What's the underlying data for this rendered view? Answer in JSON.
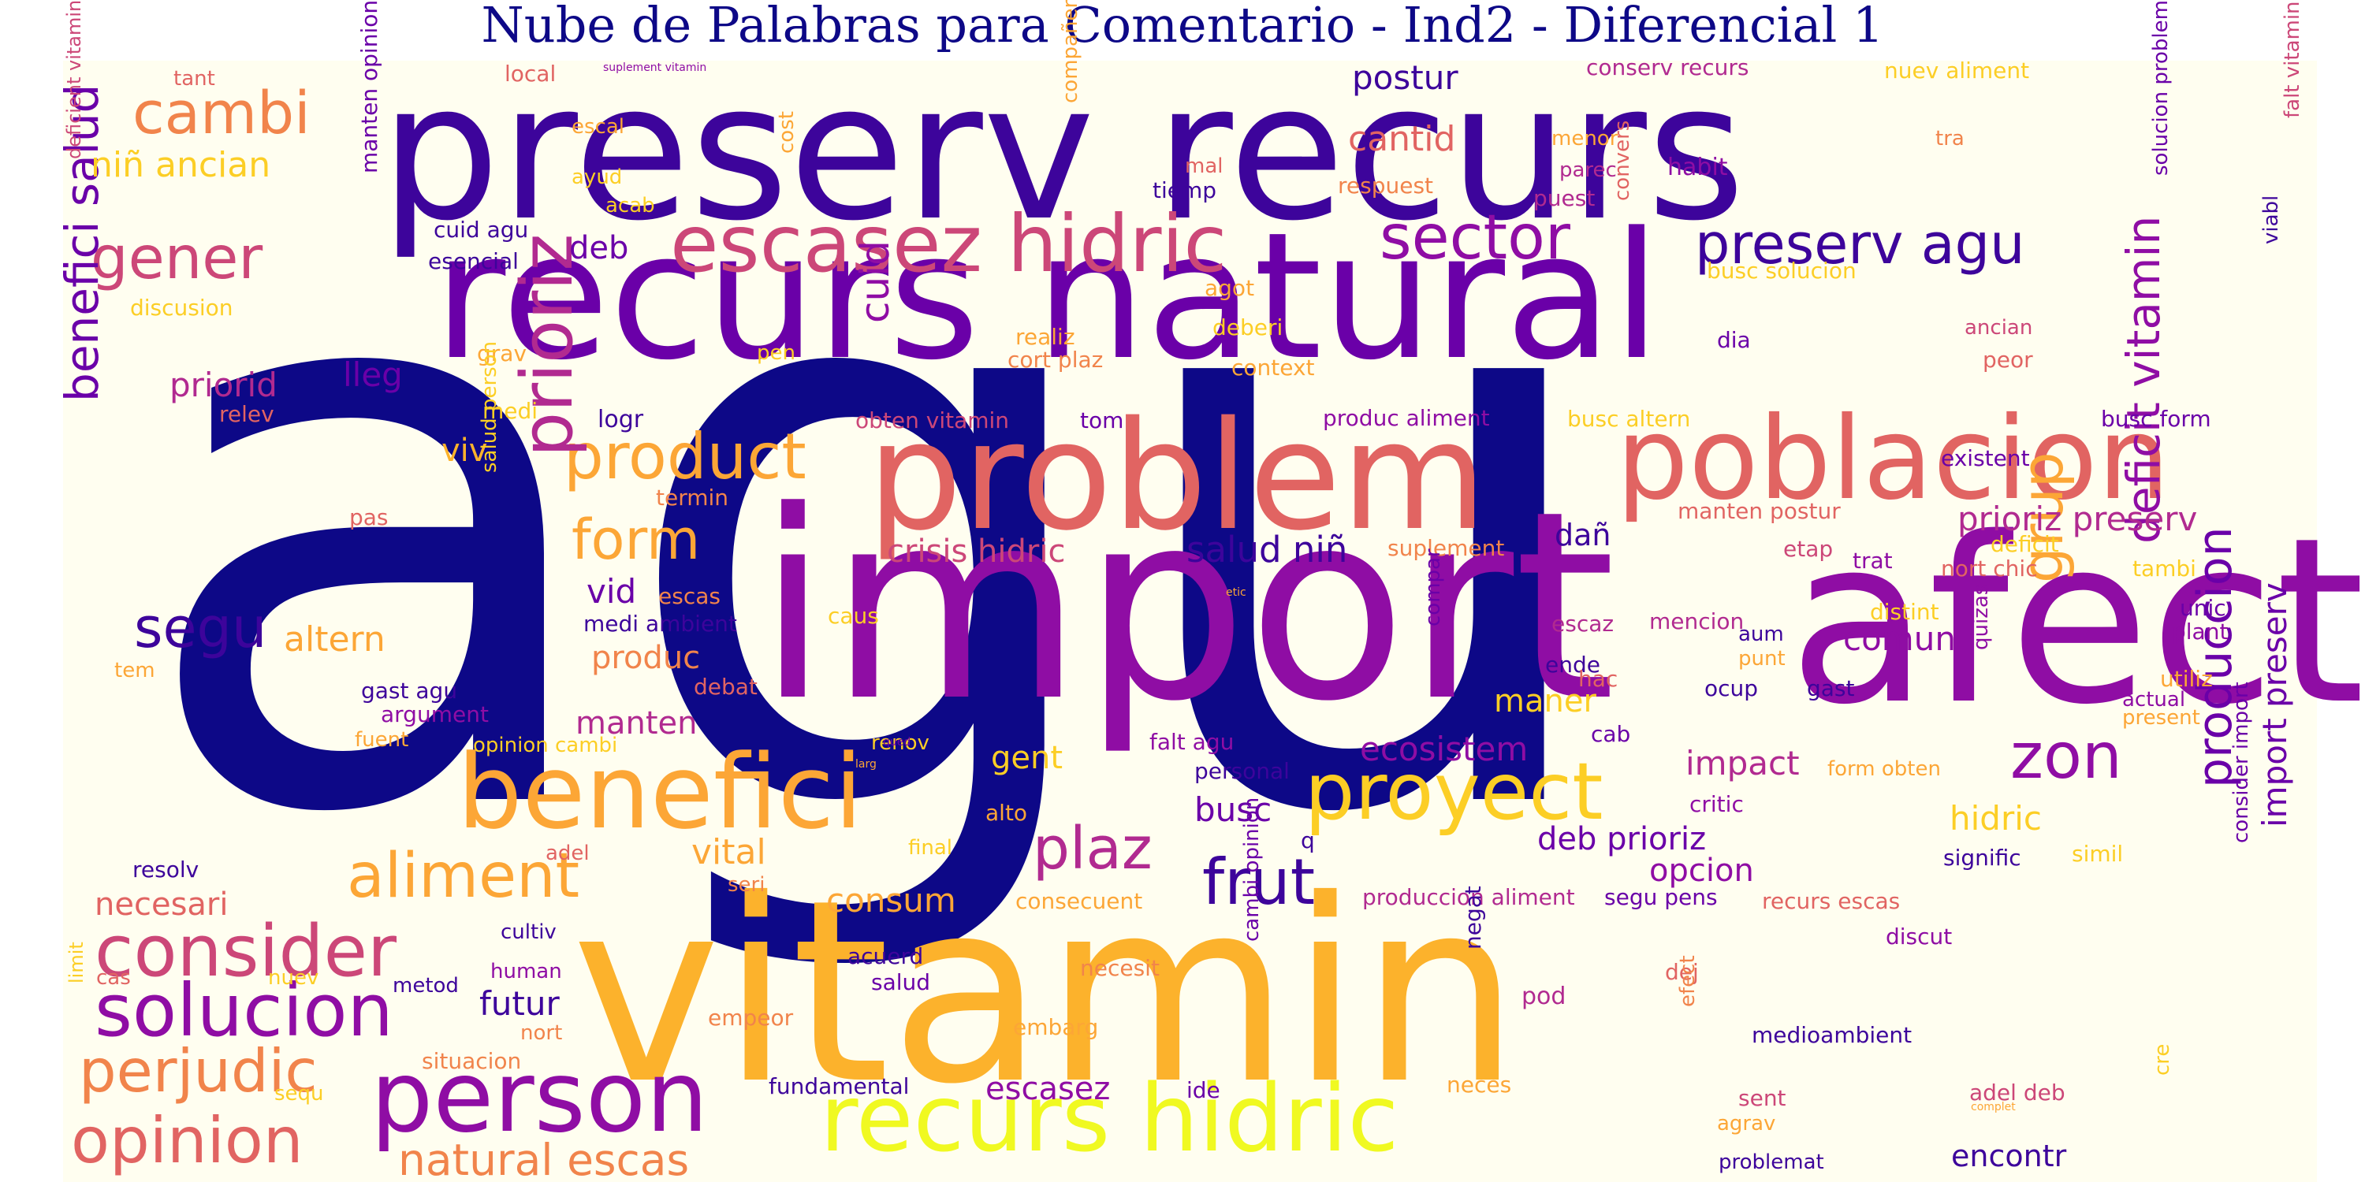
{
  "title": "Nube de Palabras para Comentario - Ind2 - Diferencial 1",
  "palette": {
    "background": "#fffef0",
    "title_color": "#0d0887",
    "colors": [
      "#0d0887",
      "#3d049b",
      "#6a00a8",
      "#8f0da4",
      "#b12a90",
      "#cc4778",
      "#e16462",
      "#f1844b",
      "#fca636",
      "#fcce25",
      "#f0f921"
    ]
  },
  "words": [
    {
      "text": "agu",
      "color": "#0d0887",
      "vertical": true
    },
    {
      "text": "preserv recurs",
      "color": "#3d049b",
      "vertical": false
    },
    {
      "text": "recurs natural",
      "color": "#6a00a8",
      "vertical": false
    },
    {
      "text": "import",
      "color": "#8f0da4",
      "vertical": false
    },
    {
      "text": "vitamin",
      "color": "#fcb22c",
      "vertical": false
    },
    {
      "text": "afect",
      "color": "#8f0da4",
      "vertical": true
    },
    {
      "text": "problem",
      "color": "#e16462",
      "vertical": false
    },
    {
      "text": "poblacion",
      "color": "#e16462",
      "vertical": false
    },
    {
      "text": "recurs hidric",
      "color": "#f0f921",
      "vertical": false
    },
    {
      "text": "benefici",
      "color": "#fca636",
      "vertical": false
    },
    {
      "text": "person",
      "color": "#8f0da4",
      "vertical": false
    },
    {
      "text": "escasez hidric",
      "color": "#cc4778",
      "vertical": false
    },
    {
      "text": "proyect",
      "color": "#fcce25",
      "vertical": false
    },
    {
      "text": "sector",
      "color": "#8f0da4",
      "vertical": false
    },
    {
      "text": "preserv agu",
      "color": "#3d049b",
      "vertical": false
    },
    {
      "text": "gener",
      "color": "#cc4778",
      "vertical": false
    },
    {
      "text": "cambi",
      "color": "#f1844b",
      "vertical": false
    },
    {
      "text": "aliment",
      "color": "#fca636",
      "vertical": false
    },
    {
      "text": "consider",
      "color": "#cc4778",
      "vertical": false
    },
    {
      "text": "solucion",
      "color": "#8f0da4",
      "vertical": false
    },
    {
      "text": "perjudic",
      "color": "#f1844b",
      "vertical": false
    },
    {
      "text": "opinion",
      "color": "#e16462",
      "vertical": false
    },
    {
      "text": "natural escas",
      "color": "#f1844b",
      "vertical": false
    },
    {
      "text": "product",
      "color": "#fca636",
      "vertical": false
    },
    {
      "text": "form",
      "color": "#fca636",
      "vertical": false
    },
    {
      "text": "prioriz",
      "color": "#b12a90",
      "vertical": true
    },
    {
      "text": "benefici salud",
      "color": "#6a00a8",
      "vertical": true
    },
    {
      "text": "segu",
      "color": "#3d049b",
      "vertical": false
    },
    {
      "text": "plaz",
      "color": "#b12a90",
      "vertical": false
    },
    {
      "text": "frut",
      "color": "#3d049b",
      "vertical": false
    },
    {
      "text": "grup",
      "color": "#fca636",
      "vertical": true
    },
    {
      "text": "zon",
      "color": "#8f0da4",
      "vertical": false
    },
    {
      "text": "deficit vitamin",
      "color": "#8f0da4",
      "vertical": true
    },
    {
      "text": "produccion",
      "color": "#6a00a8",
      "vertical": true
    },
    {
      "text": "import preserv",
      "color": "#6a00a8",
      "vertical": true
    },
    {
      "text": "niñ ancian",
      "color": "#fcce25",
      "vertical": false
    },
    {
      "text": "cantid",
      "color": "#e16462",
      "vertical": false
    },
    {
      "text": "postur",
      "color": "#3d049b",
      "vertical": false
    },
    {
      "text": "cuid",
      "color": "#8f0da4",
      "vertical": true
    },
    {
      "text": "deb",
      "color": "#6a00a8",
      "vertical": false
    },
    {
      "text": "lleg",
      "color": "#6a00a8",
      "vertical": false
    },
    {
      "text": "priorid",
      "color": "#b12a90",
      "vertical": false
    },
    {
      "text": "crisis hidric",
      "color": "#cc4778",
      "vertical": false
    },
    {
      "text": "salud niñ",
      "color": "#3d049b",
      "vertical": false
    },
    {
      "text": "vid",
      "color": "#6a00a8",
      "vertical": false
    },
    {
      "text": "viv",
      "color": "#fcb22c",
      "vertical": false
    },
    {
      "text": "altern",
      "color": "#fca636",
      "vertical": false
    },
    {
      "text": "manten",
      "color": "#b12a90",
      "vertical": false
    },
    {
      "text": "produc",
      "color": "#f1844b",
      "vertical": false
    },
    {
      "text": "ecosistem",
      "color": "#8f0da4",
      "vertical": false
    },
    {
      "text": "maner",
      "color": "#fcce25",
      "vertical": false
    },
    {
      "text": "comun",
      "color": "#8f0da4",
      "vertical": false
    },
    {
      "text": "prioriz preserv",
      "color": "#b12a90",
      "vertical": false
    },
    {
      "text": "impact",
      "color": "#b12a90",
      "vertical": false
    },
    {
      "text": "hidric",
      "color": "#fcce25",
      "vertical": false
    },
    {
      "text": "gent",
      "color": "#fcce25",
      "vertical": false
    },
    {
      "text": "vital",
      "color": "#fca636",
      "vertical": false
    },
    {
      "text": "busc",
      "color": "#6a00a8",
      "vertical": false
    },
    {
      "text": "deb prioriz",
      "color": "#6a00a8",
      "vertical": false
    },
    {
      "text": "opcion",
      "color": "#8f0da4",
      "vertical": false
    },
    {
      "text": "consum",
      "color": "#fca636",
      "vertical": false
    },
    {
      "text": "futur",
      "color": "#3d049b",
      "vertical": false
    },
    {
      "text": "escasez",
      "color": "#8f0da4",
      "vertical": false
    },
    {
      "text": "encontr",
      "color": "#3d049b",
      "vertical": false
    },
    {
      "text": "necesari",
      "color": "#e16462",
      "vertical": false
    },
    {
      "text": "dañ",
      "color": "#3d049b",
      "vertical": false
    },
    {
      "text": "cuid agu",
      "color": "#3d049b",
      "vertical": false
    },
    {
      "text": "esencial",
      "color": "#3d049b",
      "vertical": false
    },
    {
      "text": "tiemp",
      "color": "#3d049b",
      "vertical": false
    },
    {
      "text": "habit",
      "color": "#8f0da4",
      "vertical": false
    },
    {
      "text": "parec",
      "color": "#b12a90",
      "vertical": false
    },
    {
      "text": "puest",
      "color": "#b12a90",
      "vertical": false
    },
    {
      "text": "conserv recurs",
      "color": "#b12a90",
      "vertical": false
    },
    {
      "text": "nuev aliment",
      "color": "#fcce25",
      "vertical": false
    },
    {
      "text": "menor",
      "color": "#fca636",
      "vertical": false
    },
    {
      "text": "tra",
      "color": "#f1844b",
      "vertical": false
    },
    {
      "text": "respuest",
      "color": "#f1844b",
      "vertical": false
    },
    {
      "text": "mal",
      "color": "#e16462",
      "vertical": false
    },
    {
      "text": "busc solucion",
      "color": "#fcce25",
      "vertical": false
    },
    {
      "text": "agot",
      "color": "#fca636",
      "vertical": false
    },
    {
      "text": "deberi",
      "color": "#fcce25",
      "vertical": false
    },
    {
      "text": "realiz",
      "color": "#fca636",
      "vertical": false
    },
    {
      "text": "cort plaz",
      "color": "#f1844b",
      "vertical": false
    },
    {
      "text": "context",
      "color": "#fca636",
      "vertical": false
    },
    {
      "text": "dia",
      "color": "#6a00a8",
      "vertical": false
    },
    {
      "text": "ancian",
      "color": "#cc4778",
      "vertical": false
    },
    {
      "text": "peor",
      "color": "#e16462",
      "vertical": false
    },
    {
      "text": "produc aliment",
      "color": "#8f0da4",
      "vertical": false
    },
    {
      "text": "busc altern",
      "color": "#fcce25",
      "vertical": false
    },
    {
      "text": "existent",
      "color": "#6a00a8",
      "vertical": false
    },
    {
      "text": "busc form",
      "color": "#6a00a8",
      "vertical": false
    },
    {
      "text": "obten vitamin",
      "color": "#cc4778",
      "vertical": false
    },
    {
      "text": "tom",
      "color": "#6a00a8",
      "vertical": false
    },
    {
      "text": "logr",
      "color": "#3d049b",
      "vertical": false
    },
    {
      "text": "medi",
      "color": "#fcce25",
      "vertical": false
    },
    {
      "text": "relev",
      "color": "#e16462",
      "vertical": false
    },
    {
      "text": "grav",
      "color": "#fca636",
      "vertical": false
    },
    {
      "text": "pen",
      "color": "#fcce25",
      "vertical": false
    },
    {
      "text": "termin",
      "color": "#f1844b",
      "vertical": false
    },
    {
      "text": "pas",
      "color": "#e16462",
      "vertical": false
    },
    {
      "text": "manten postur",
      "color": "#e16462",
      "vertical": false
    },
    {
      "text": "etap",
      "color": "#cc4778",
      "vertical": false
    },
    {
      "text": "trat",
      "color": "#8f0da4",
      "vertical": false
    },
    {
      "text": "deficit",
      "color": "#fcce25",
      "vertical": false
    },
    {
      "text": "nort chic",
      "color": "#e16462",
      "vertical": false
    },
    {
      "text": "tambi",
      "color": "#fcce25",
      "vertical": false
    },
    {
      "text": "suplement",
      "color": "#f1844b",
      "vertical": false
    },
    {
      "text": "distint",
      "color": "#fcce25",
      "vertical": false
    },
    {
      "text": "mencion",
      "color": "#b12a90",
      "vertical": false
    },
    {
      "text": "aum",
      "color": "#3d049b",
      "vertical": false
    },
    {
      "text": "punt",
      "color": "#fca636",
      "vertical": false
    },
    {
      "text": "escaz",
      "color": "#b12a90",
      "vertical": false
    },
    {
      "text": "ende",
      "color": "#3d049b",
      "vertical": false
    },
    {
      "text": "hac",
      "color": "#e16462",
      "vertical": false
    },
    {
      "text": "ocup",
      "color": "#3d049b",
      "vertical": false
    },
    {
      "text": "gast",
      "color": "#3d049b",
      "vertical": false
    },
    {
      "text": "unic",
      "color": "#6a00a8",
      "vertical": false
    },
    {
      "text": "plant",
      "color": "#8f0da4",
      "vertical": false
    },
    {
      "text": "utiliz",
      "color": "#fca636",
      "vertical": false
    },
    {
      "text": "actual",
      "color": "#8f0da4",
      "vertical": false
    },
    {
      "text": "present",
      "color": "#fca636",
      "vertical": false
    },
    {
      "text": "medi ambient",
      "color": "#3d049b",
      "vertical": false
    },
    {
      "text": "escas",
      "color": "#f1844b",
      "vertical": false
    },
    {
      "text": "caus",
      "color": "#fcce25",
      "vertical": false
    },
    {
      "text": "gast agu",
      "color": "#3d049b",
      "vertical": false
    },
    {
      "text": "debat",
      "color": "#e16462",
      "vertical": false
    },
    {
      "text": "argument",
      "color": "#8f0da4",
      "vertical": false
    },
    {
      "text": "fuent",
      "color": "#fca636",
      "vertical": false
    },
    {
      "text": "opinion cambi",
      "color": "#fcce25",
      "vertical": false
    },
    {
      "text": "renov",
      "color": "#fcce25",
      "vertical": false
    },
    {
      "text": "falt agu",
      "color": "#8f0da4",
      "vertical": false
    },
    {
      "text": "cab",
      "color": "#6a00a8",
      "vertical": false
    },
    {
      "text": "personal",
      "color": "#3d049b",
      "vertical": false
    },
    {
      "text": "critic",
      "color": "#8f0da4",
      "vertical": false
    },
    {
      "text": "form obten",
      "color": "#fca636",
      "vertical": false
    },
    {
      "text": "alto",
      "color": "#fca636",
      "vertical": false
    },
    {
      "text": "final",
      "color": "#fcce25",
      "vertical": false
    },
    {
      "text": "adel",
      "color": "#e16462",
      "vertical": false
    },
    {
      "text": "seri",
      "color": "#f1844b",
      "vertical": false
    },
    {
      "text": "signific",
      "color": "#3d049b",
      "vertical": false
    },
    {
      "text": "simil",
      "color": "#fcce25",
      "vertical": false
    },
    {
      "text": "resolv",
      "color": "#3d049b",
      "vertical": false
    },
    {
      "text": "consecuent",
      "color": "#fca636",
      "vertical": false
    },
    {
      "text": "produccion aliment",
      "color": "#b12a90",
      "vertical": false
    },
    {
      "text": "segu pens",
      "color": "#6a00a8",
      "vertical": false
    },
    {
      "text": "recurs escas",
      "color": "#e16462",
      "vertical": false
    },
    {
      "text": "discut",
      "color": "#8f0da4",
      "vertical": false
    },
    {
      "text": "cultiv",
      "color": "#3d049b",
      "vertical": false
    },
    {
      "text": "human",
      "color": "#8f0da4",
      "vertical": false
    },
    {
      "text": "cas",
      "color": "#e16462",
      "vertical": false
    },
    {
      "text": "metod",
      "color": "#3d049b",
      "vertical": false
    },
    {
      "text": "nuev",
      "color": "#fcce25",
      "vertical": false
    },
    {
      "text": "nort",
      "color": "#f1844b",
      "vertical": false
    },
    {
      "text": "acuerd",
      "color": "#3d049b",
      "vertical": false
    },
    {
      "text": "salud",
      "color": "#6a00a8",
      "vertical": false
    },
    {
      "text": "necesit",
      "color": "#f1844b",
      "vertical": false
    },
    {
      "text": "empeor",
      "color": "#f1844b",
      "vertical": false
    },
    {
      "text": "embarg",
      "color": "#fca636",
      "vertical": false
    },
    {
      "text": "pod",
      "color": "#b12a90",
      "vertical": false
    },
    {
      "text": "dej",
      "color": "#e16462",
      "vertical": false
    },
    {
      "text": "medioambient",
      "color": "#3d049b",
      "vertical": false
    },
    {
      "text": "situacion",
      "color": "#f1844b",
      "vertical": false
    },
    {
      "text": "fundamental",
      "color": "#3d049b",
      "vertical": false
    },
    {
      "text": "ide",
      "color": "#6a00a8",
      "vertical": false
    },
    {
      "text": "neces",
      "color": "#fca636",
      "vertical": false
    },
    {
      "text": "sent",
      "color": "#cc4778",
      "vertical": false
    },
    {
      "text": "agrav",
      "color": "#fca636",
      "vertical": false
    },
    {
      "text": "adel deb",
      "color": "#cc4778",
      "vertical": false
    },
    {
      "text": "problemat",
      "color": "#3d049b",
      "vertical": false
    },
    {
      "text": "sequ",
      "color": "#fcce25",
      "vertical": false
    },
    {
      "text": "complet",
      "color": "#fca636",
      "vertical": false
    },
    {
      "text": "tant",
      "color": "#e16462",
      "vertical": false
    },
    {
      "text": "local",
      "color": "#e16462",
      "vertical": false
    },
    {
      "text": "suplement vitamin",
      "color": "#8f0da4",
      "vertical": false
    },
    {
      "text": "escal",
      "color": "#fca636",
      "vertical": false
    },
    {
      "text": "ayud",
      "color": "#fcce25",
      "vertical": false
    },
    {
      "text": "acab",
      "color": "#fcce25",
      "vertical": false
    },
    {
      "text": "discusion",
      "color": "#fcce25",
      "vertical": false
    },
    {
      "text": "tem",
      "color": "#fca636",
      "vertical": false
    },
    {
      "text": "etic",
      "color": "#fca636",
      "vertical": false
    },
    {
      "text": "qued",
      "color": "#6a00a8",
      "vertical": false
    },
    {
      "text": "larg",
      "color": "#fca636",
      "vertical": false
    },
    {
      "text": "q",
      "color": "#3d049b",
      "vertical": false
    },
    {
      "text": "deficient vitamin",
      "color": "#cc4778",
      "vertical": true
    },
    {
      "text": "manten opinion",
      "color": "#6a00a8",
      "vertical": true
    },
    {
      "text": "cost",
      "color": "#fca636",
      "vertical": true
    },
    {
      "text": "compañer",
      "color": "#fca636",
      "vertical": true
    },
    {
      "text": "convers",
      "color": "#e16462",
      "vertical": true
    },
    {
      "text": "solucion problem",
      "color": "#6a00a8",
      "vertical": true
    },
    {
      "text": "viabl",
      "color": "#3d049b",
      "vertical": true
    },
    {
      "text": "falt vitamin",
      "color": "#cc4778",
      "vertical": true
    },
    {
      "text": "salud person",
      "color": "#fcce25",
      "vertical": true
    },
    {
      "text": "compar",
      "color": "#6a00a8",
      "vertical": true
    },
    {
      "text": "quizas",
      "color": "#8f0da4",
      "vertical": true
    },
    {
      "text": "consider import",
      "color": "#6a00a8",
      "vertical": true
    },
    {
      "text": "cambi opinion",
      "color": "#6a00a8",
      "vertical": true
    },
    {
      "text": "negat",
      "color": "#3d049b",
      "vertical": true
    },
    {
      "text": "efect",
      "color": "#f1844b",
      "vertical": true
    },
    {
      "text": "limit",
      "color": "#fcce25",
      "vertical": true
    },
    {
      "text": "cre",
      "color": "#fcce25",
      "vertical": true
    }
  ]
}
